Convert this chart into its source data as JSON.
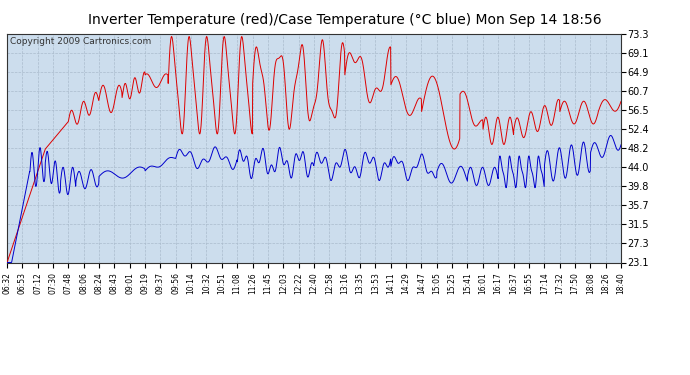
{
  "title": "Inverter Temperature (red)/Case Temperature (°C blue) Mon Sep 14 18:56",
  "copyright": "Copyright 2009 Cartronics.com",
  "yticks": [
    23.1,
    27.3,
    31.5,
    35.7,
    39.8,
    44.0,
    48.2,
    52.4,
    56.5,
    60.7,
    64.9,
    69.1,
    73.3
  ],
  "ymin": 23.1,
  "ymax": 73.3,
  "xtick_labels": [
    "06:32",
    "06:53",
    "07:12",
    "07:30",
    "07:48",
    "08:06",
    "08:24",
    "08:43",
    "09:01",
    "09:19",
    "09:37",
    "09:56",
    "10:14",
    "10:32",
    "10:51",
    "11:08",
    "11:26",
    "11:45",
    "12:03",
    "12:22",
    "12:40",
    "12:58",
    "13:16",
    "13:35",
    "13:53",
    "14:11",
    "14:29",
    "14:47",
    "15:05",
    "15:25",
    "15:41",
    "16:01",
    "16:17",
    "16:37",
    "16:55",
    "17:14",
    "17:32",
    "17:50",
    "18:08",
    "18:26",
    "18:40"
  ],
  "bg_color": "#ffffff",
  "plot_bg_color": "#ccdded",
  "grid_color": "#aabbcc",
  "red_color": "#dd0000",
  "blue_color": "#0000cc",
  "title_fontsize": 11,
  "copyright_fontsize": 6.5
}
